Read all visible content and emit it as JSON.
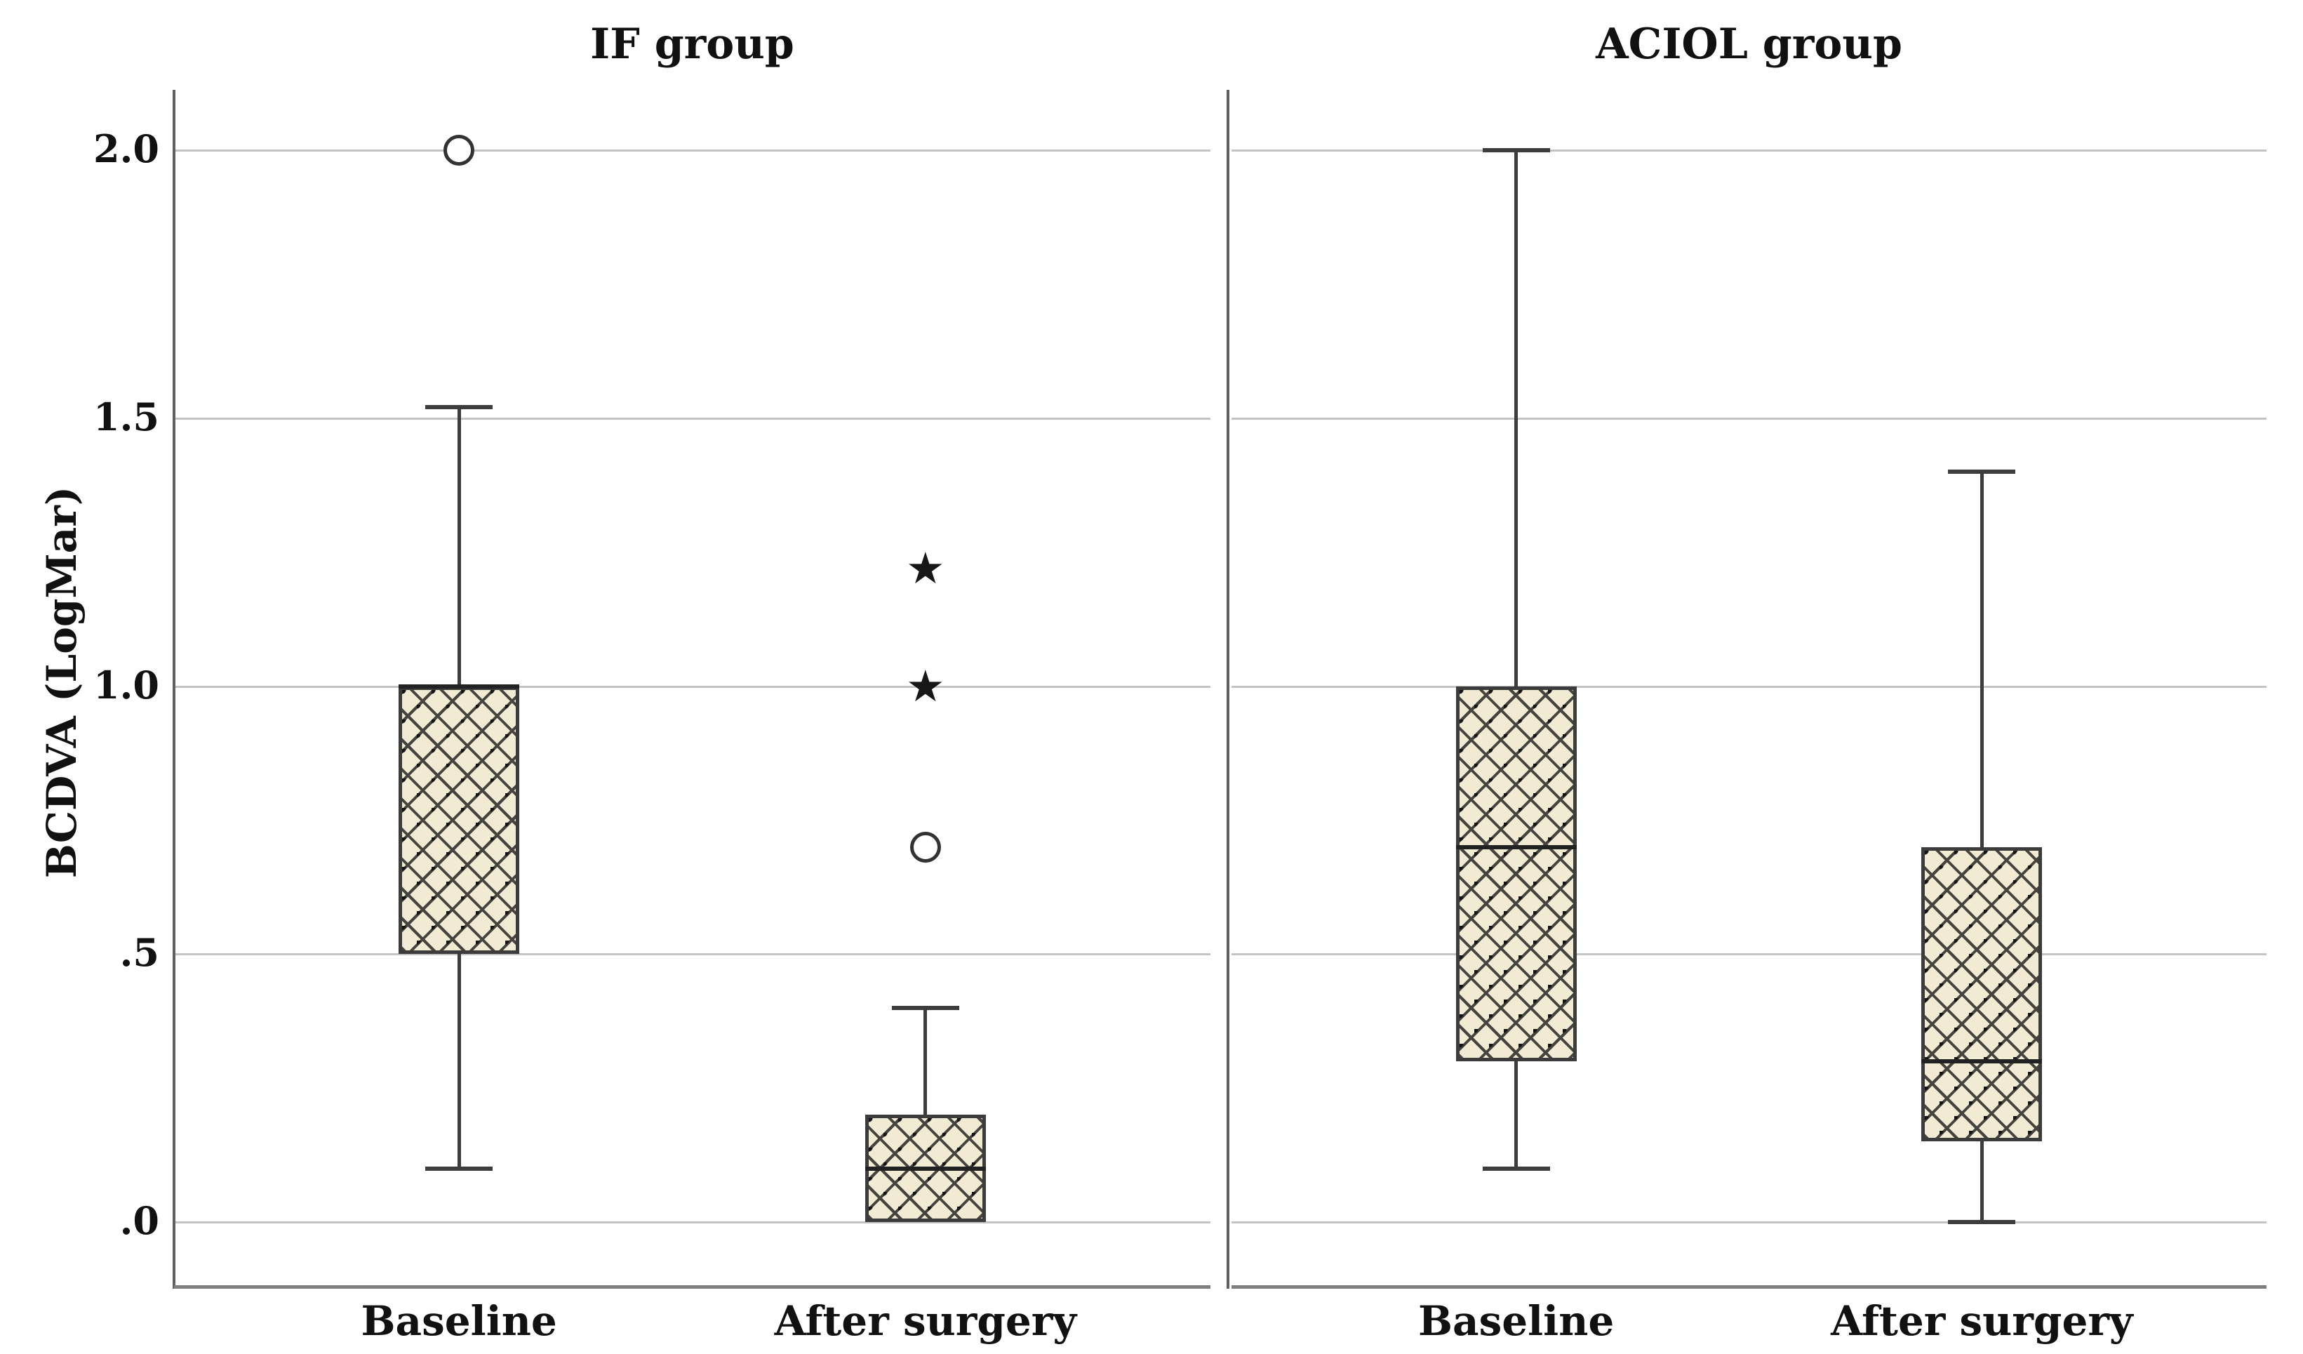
{
  "figure": {
    "background": "#ffffff"
  },
  "chart_data": {
    "type": "boxplot",
    "title": "",
    "ylabel": "BCDVA (LogMar)",
    "xlabel": "",
    "ytick_labels": [
      "2.0",
      "1.5",
      "1.0",
      ".5",
      ".0"
    ],
    "ytick_values": [
      2.0,
      1.5,
      1.0,
      0.5,
      0.0
    ],
    "ylim": [
      -0.12,
      2.12
    ],
    "grid": true,
    "legend": "none",
    "colors": {
      "box_fill": "#f2ebd4",
      "hatch": "#46443e",
      "box_border": "#3c3c3c",
      "whisker": "#3d3d3d",
      "gridline": "#c4c4c4",
      "axis_line": "#5f5f5f",
      "bottom_frame": "#7f7f7f",
      "text": "#111111"
    },
    "panels": [
      {
        "title": "IF group",
        "categories": [
          "Baseline",
          "After surgery"
        ],
        "boxes": [
          {
            "category": "Baseline",
            "q1": 0.5,
            "median": 1.0,
            "q3": 1.0,
            "whisker_low": 0.1,
            "whisker_high": 1.52,
            "outliers_circle": [
              2.0
            ],
            "outliers_star": []
          },
          {
            "category": "After surgery",
            "q1": 0.0,
            "median": 0.1,
            "q3": 0.2,
            "whisker_low": 0.0,
            "whisker_high": 0.4,
            "outliers_circle": [
              0.7
            ],
            "outliers_star": [
              1.0,
              1.22
            ]
          }
        ]
      },
      {
        "title": "ACIOL group",
        "categories": [
          "Baseline",
          "After surgery"
        ],
        "boxes": [
          {
            "category": "Baseline",
            "q1": 0.3,
            "median": 0.7,
            "q3": 1.0,
            "whisker_low": 0.1,
            "whisker_high": 2.0,
            "outliers_circle": [],
            "outliers_star": []
          },
          {
            "category": "After surgery",
            "q1": 0.15,
            "median": 0.3,
            "q3": 0.7,
            "whisker_low": 0.0,
            "whisker_high": 1.4,
            "outliers_circle": [],
            "outliers_star": []
          }
        ]
      }
    ]
  }
}
